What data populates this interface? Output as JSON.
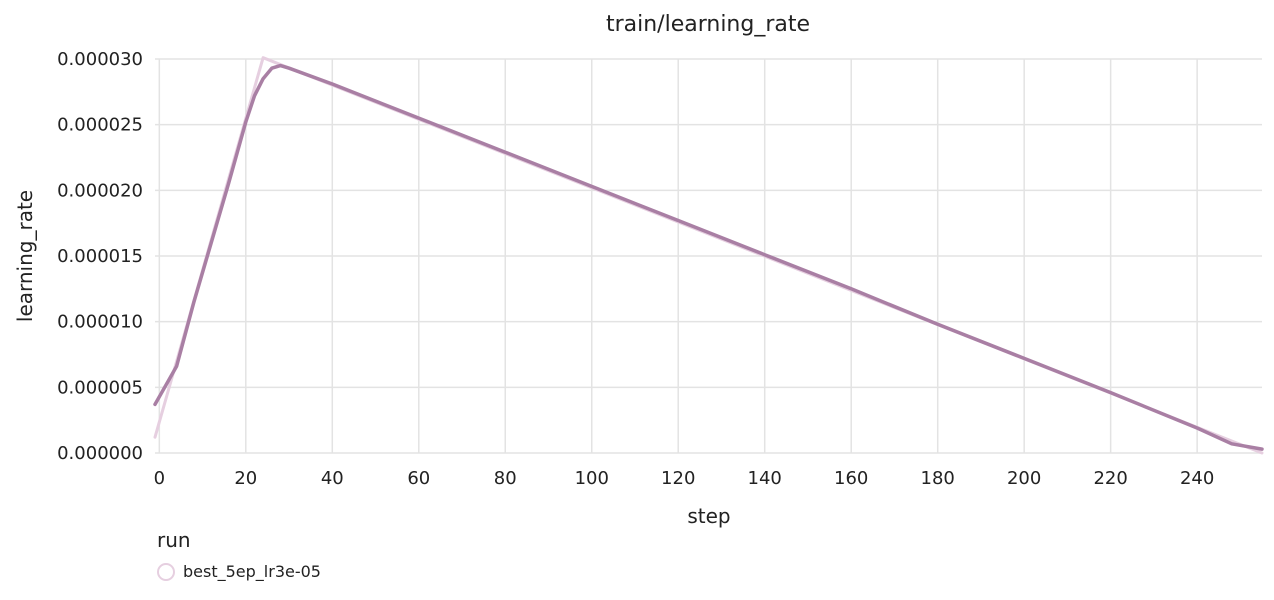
{
  "chart_data": {
    "type": "line",
    "title": "train/learning_rate",
    "xlabel": "step",
    "ylabel": "learning_rate",
    "xlim": [
      -1,
      255
    ],
    "ylim": [
      0,
      3e-05
    ],
    "x_ticks": [
      0,
      20,
      40,
      60,
      80,
      100,
      120,
      140,
      160,
      180,
      200,
      220,
      240
    ],
    "y_ticks": [
      0,
      5e-06,
      1e-05,
      1.5e-05,
      2e-05,
      2.5e-05,
      3e-05
    ],
    "x_tick_labels": [
      "0",
      "20",
      "40",
      "60",
      "80",
      "100",
      "120",
      "140",
      "160",
      "180",
      "200",
      "220",
      "240"
    ],
    "y_tick_labels": [
      "0.000000",
      "0.000005",
      "0.000010",
      "0.000015",
      "0.000020",
      "0.000025",
      "0.000030"
    ],
    "grid": true,
    "legend": {
      "title": "run",
      "placement": "bottom-left"
    },
    "series": [
      {
        "name": "best_5ep_lr3e-05",
        "color": "#a97fa4",
        "raw_color": "#e6cfe0",
        "raw": {
          "x": [
            -1,
            24,
            255
          ],
          "y": [
            1.2e-06,
            3.01e-05,
            0.0
          ]
        },
        "smoothed": {
          "x": [
            -1,
            4,
            8,
            12,
            16,
            20,
            22,
            24,
            26,
            28,
            30,
            40,
            60,
            80,
            100,
            120,
            140,
            160,
            180,
            200,
            220,
            240,
            248,
            255
          ],
          "y": [
            3.7e-06,
            6.6e-06,
            1.15e-05,
            1.6e-05,
            2.05e-05,
            2.52e-05,
            2.72e-05,
            2.85e-05,
            2.93e-05,
            2.95e-05,
            2.93e-05,
            2.81e-05,
            2.55e-05,
            2.29e-05,
            2.03e-05,
            1.77e-05,
            1.51e-05,
            1.25e-05,
            9.8e-06,
            7.2e-06,
            4.6e-06,
            1.9e-06,
            7e-07,
            3e-07
          ]
        }
      }
    ]
  }
}
